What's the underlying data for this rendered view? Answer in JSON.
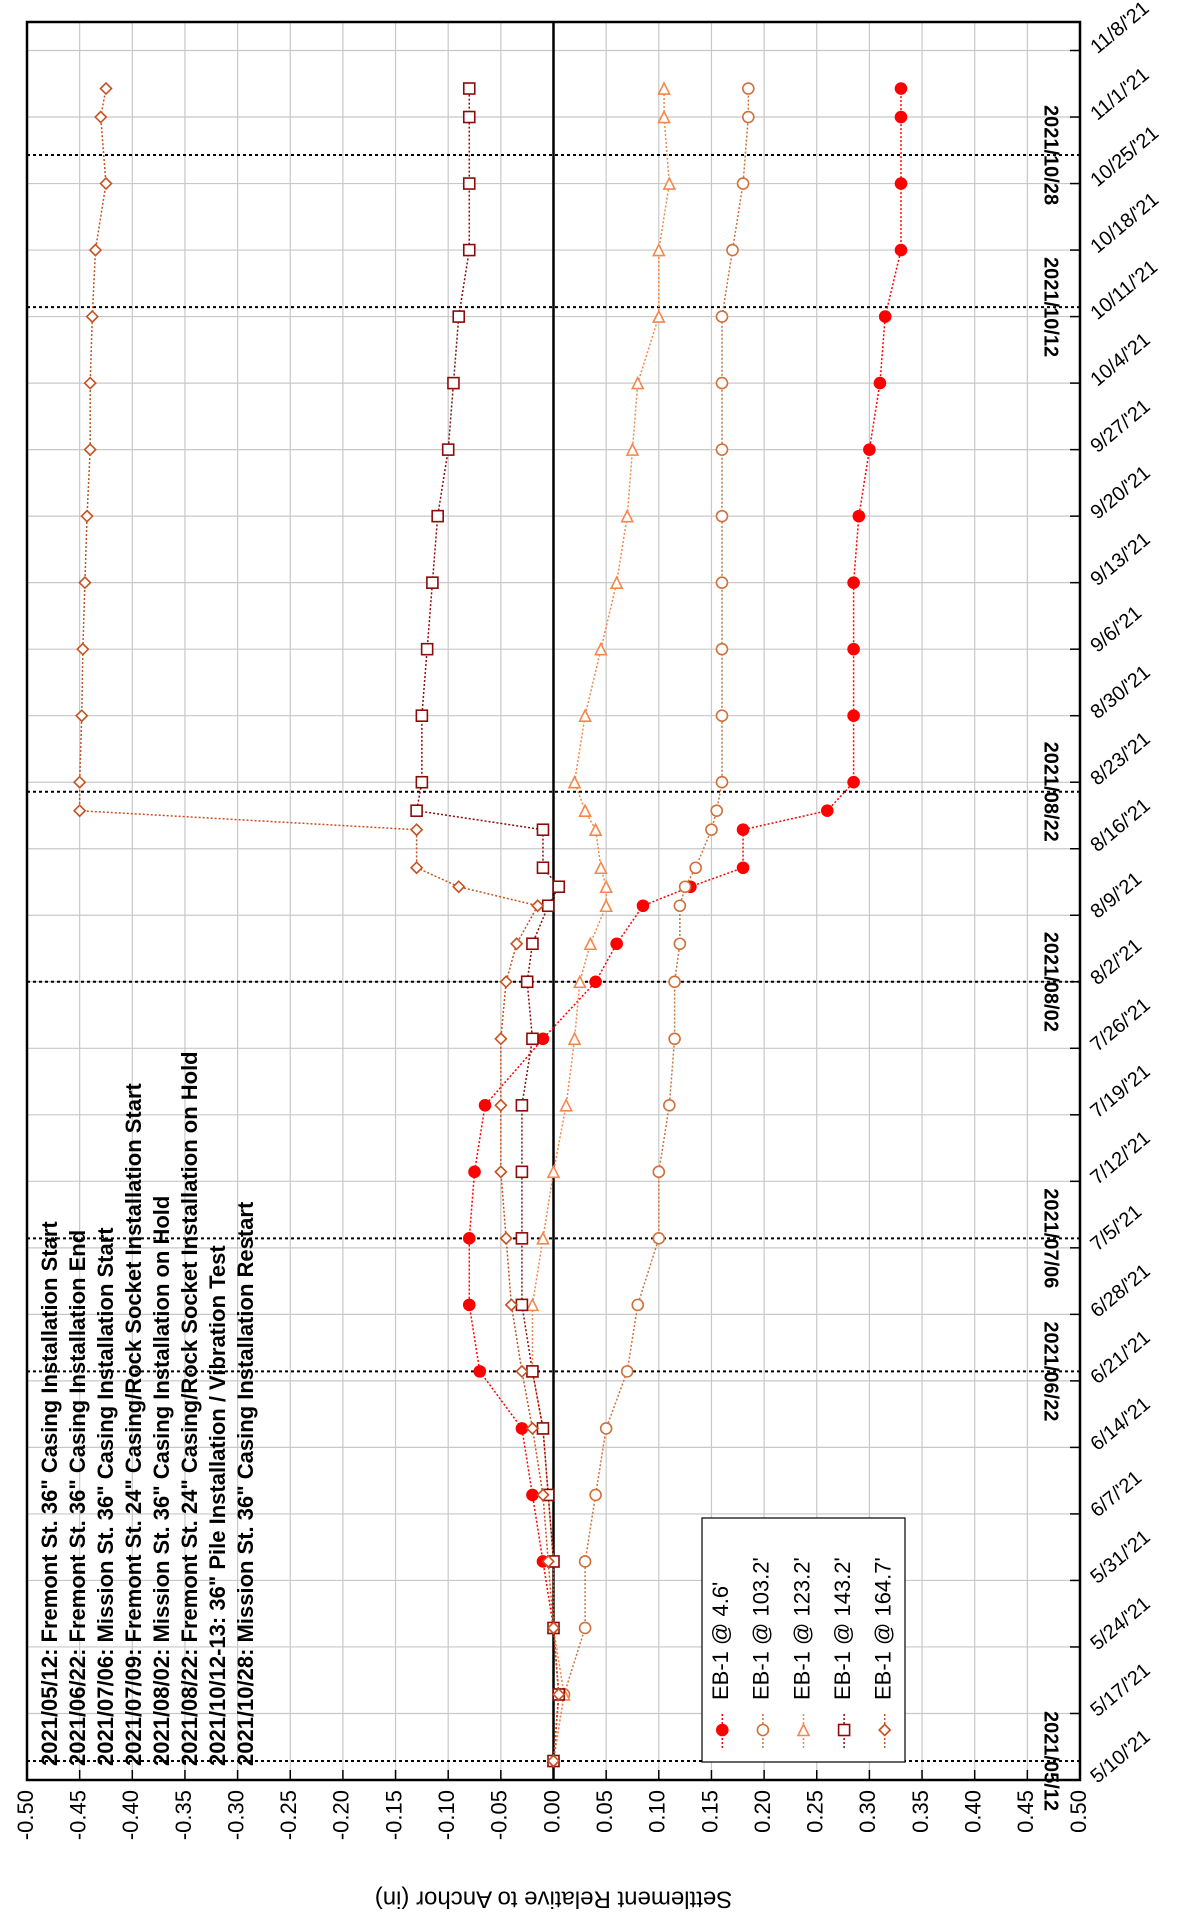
{
  "chart_data": {
    "type": "line",
    "y_label": "Settlement Relative to Anchor (in)",
    "x": [
      "2021-05-12",
      "2021-05-19",
      "2021-05-26",
      "2021-06-02",
      "2021-06-09",
      "2021-06-16",
      "2021-06-22",
      "2021-06-29",
      "2021-07-06",
      "2021-07-13",
      "2021-07-20",
      "2021-07-27",
      "2021-08-02",
      "2021-08-06",
      "2021-08-10",
      "2021-08-12",
      "2021-08-14",
      "2021-08-18",
      "2021-08-20",
      "2021-08-23",
      "2021-08-30",
      "2021-09-06",
      "2021-09-13",
      "2021-09-20",
      "2021-09-27",
      "2021-10-04",
      "2021-10-11",
      "2021-10-18",
      "2021-10-25",
      "2021-11-01",
      "2021-11-04"
    ],
    "series": [
      {
        "name": "EB-1 @ 4.6'",
        "color": "#ff0000",
        "marker": "circle-filled",
        "values": [
          0,
          0.005,
          0,
          -0.01,
          -0.02,
          -0.03,
          -0.07,
          -0.08,
          -0.08,
          -0.075,
          -0.065,
          -0.01,
          0.04,
          0.06,
          0.085,
          0.13,
          0.18,
          0.18,
          0.26,
          0.285,
          0.285,
          0.285,
          0.285,
          0.29,
          0.3,
          0.31,
          0.315,
          0.33,
          0.33,
          0.33,
          0.33
        ]
      },
      {
        "name": "EB-1 @ 103.2'",
        "color": "#d0703a",
        "marker": "circle",
        "values": [
          0,
          0.01,
          0.03,
          0.03,
          0.04,
          0.05,
          0.07,
          0.08,
          0.1,
          0.1,
          0.11,
          0.115,
          0.115,
          0.12,
          0.12,
          0.125,
          0.135,
          0.15,
          0.155,
          0.16,
          0.16,
          0.16,
          0.16,
          0.16,
          0.16,
          0.16,
          0.16,
          0.17,
          0.18,
          0.185,
          0.185
        ]
      },
      {
        "name": "EB-1 @ 123.2'",
        "color": "#f4874b",
        "marker": "triangle",
        "values": [
          0,
          0.01,
          0,
          0,
          -0.005,
          -0.01,
          -0.02,
          -0.02,
          -0.01,
          0,
          0.012,
          0.02,
          0.025,
          0.035,
          0.05,
          0.05,
          0.045,
          0.04,
          0.03,
          0.02,
          0.03,
          0.045,
          0.06,
          0.07,
          0.075,
          0.08,
          0.1,
          0.1,
          0.11,
          0.105,
          0.105
        ]
      },
      {
        "name": "EB-1 @ 143.2'",
        "color": "#8b0a0a",
        "marker": "square",
        "values": [
          0,
          0.005,
          0,
          0,
          -0.005,
          -0.01,
          -0.02,
          -0.03,
          -0.03,
          -0.03,
          -0.03,
          -0.02,
          -0.025,
          -0.02,
          -0.005,
          0.005,
          -0.01,
          -0.01,
          -0.13,
          -0.125,
          -0.125,
          -0.12,
          -0.115,
          -0.11,
          -0.1,
          -0.095,
          -0.09,
          -0.08,
          -0.08,
          -0.08,
          -0.08
        ]
      },
      {
        "name": "EB-1 @ 164.7'",
        "color": "#c8501e",
        "marker": "diamond",
        "values": [
          0,
          0.005,
          0,
          -0.005,
          -0.01,
          -0.02,
          -0.03,
          -0.04,
          -0.045,
          -0.05,
          -0.05,
          -0.05,
          -0.045,
          -0.035,
          -0.015,
          -0.09,
          -0.13,
          -0.13,
          -0.45,
          -0.45,
          -0.448,
          -0.447,
          -0.445,
          -0.443,
          -0.44,
          -0.44,
          -0.438,
          -0.435,
          -0.425,
          -0.43,
          -0.425
        ]
      }
    ],
    "xlim": [
      "2021-05-10",
      "2021-11-11"
    ],
    "xticks": [
      {
        "value": "2021-05-10",
        "label": "5/10/'21"
      },
      {
        "value": "2021-05-17",
        "label": "5/17/'21"
      },
      {
        "value": "2021-05-24",
        "label": "5/24/'21"
      },
      {
        "value": "2021-05-31",
        "label": "5/31/'21"
      },
      {
        "value": "2021-06-07",
        "label": "6/7/'21"
      },
      {
        "value": "2021-06-14",
        "label": "6/14/'21"
      },
      {
        "value": "2021-06-21",
        "label": "6/21/'21"
      },
      {
        "value": "2021-06-28",
        "label": "6/28/'21"
      },
      {
        "value": "2021-07-05",
        "label": "7/5/'21"
      },
      {
        "value": "2021-07-12",
        "label": "7/12/'21"
      },
      {
        "value": "2021-07-19",
        "label": "7/19/'21"
      },
      {
        "value": "2021-07-26",
        "label": "7/26/'21"
      },
      {
        "value": "2021-08-02",
        "label": "8/2/'21"
      },
      {
        "value": "2021-08-09",
        "label": "8/9/'21"
      },
      {
        "value": "2021-08-16",
        "label": "8/16/'21"
      },
      {
        "value": "2021-08-23",
        "label": "8/23/'21"
      },
      {
        "value": "2021-08-30",
        "label": "8/30/'21"
      },
      {
        "value": "2021-09-06",
        "label": "9/6/'21"
      },
      {
        "value": "2021-09-13",
        "label": "9/13/'21"
      },
      {
        "value": "2021-09-20",
        "label": "9/20/'21"
      },
      {
        "value": "2021-09-27",
        "label": "9/27/'21"
      },
      {
        "value": "2021-10-04",
        "label": "10/4/'21"
      },
      {
        "value": "2021-10-11",
        "label": "10/11/'21"
      },
      {
        "value": "2021-10-18",
        "label": "10/18/'21"
      },
      {
        "value": "2021-10-25",
        "label": "10/25/'21"
      },
      {
        "value": "2021-11-01",
        "label": "11/1/'21"
      },
      {
        "value": "2021-11-08",
        "label": "11/8/'21"
      }
    ],
    "ylim": [
      -0.5,
      0.5
    ],
    "yticks": [
      {
        "value": -0.5,
        "label": "-0.50"
      },
      -0.45,
      {
        "value": -0.4,
        "label": "-0.40"
      },
      -0.35,
      {
        "value": -0.3,
        "label": "-0.30"
      },
      -0.25,
      {
        "value": -0.2,
        "label": "-0.20"
      },
      -0.15,
      {
        "value": -0.1,
        "label": "-0.10"
      },
      -0.05,
      {
        "value": 0,
        "label": "0.00"
      },
      0.05,
      {
        "value": 0.1,
        "label": "0.10"
      },
      0.15,
      {
        "value": 0.2,
        "label": "0.20"
      },
      0.25,
      {
        "value": 0.3,
        "label": "0.30"
      },
      0.35,
      {
        "value": 0.4,
        "label": "0.40"
      },
      0.45,
      {
        "value": 0.5,
        "label": "0.50"
      }
    ],
    "y_inverted": true,
    "rotation": -90,
    "grid": true,
    "legend": "lower left",
    "events": [
      {
        "date": "2021-05-12",
        "label": "2021/05/12"
      },
      {
        "date": "2021-06-22",
        "label": "2021/06/22"
      },
      {
        "date": "2021-07-06",
        "label": "2021/07/06"
      },
      {
        "date": "2021-08-02",
        "label": "2021/08/02"
      },
      {
        "date": "2021-08-22",
        "label": "2021/08/22"
      },
      {
        "date": "2021-10-12",
        "label": "2021/10/12"
      },
      {
        "date": "2021-10-28",
        "label": "2021/10/28"
      }
    ],
    "annotations": [
      "2021/05/12: Fremont St. 36\" Casing Installation Start",
      "2021/06/22: Fremont St. 36\" Casing Installation End",
      "2021/07/06: Mission St. 36\" Casing Installation Start",
      "2021/07/09: Fremont St. 24\" Casing/Rock Socket Installation Start",
      "2021/08/02: Mission St. 36\" Casing Installation on Hold",
      "2021/08/22: Fremont St. 24\" Casing/Rock Socket Installation on Hold",
      "2021/10/12-13: 36\" Pile Installation / Vibration Test",
      "2021/10/28: Mission St. 36\" Casing Installation Restart"
    ]
  }
}
